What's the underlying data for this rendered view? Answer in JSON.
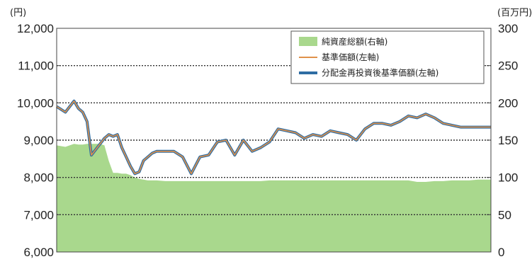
{
  "chart_data": {
    "type": "line",
    "left_unit": "(円)",
    "right_unit": "(百万円)",
    "y_left": {
      "lim": [
        6000,
        12000
      ],
      "ticks": [
        "6,000",
        "7,000",
        "8,000",
        "9,000",
        "10,000",
        "11,000",
        "12,000"
      ]
    },
    "y_right": {
      "lim": [
        0,
        300
      ],
      "ticks": [
        "0",
        "50",
        "100",
        "150",
        "200",
        "250",
        "300"
      ]
    },
    "grid": "dotted horizontal",
    "legend": {
      "placement": "top-right",
      "items": [
        "純資産総額(右軸)",
        "基準価額(左軸)",
        "分配金再投資後基準価額(左軸)"
      ]
    },
    "colors": {
      "area": "#a9d88d",
      "nav": "#e0914a",
      "reinvested": "#2f6da3"
    },
    "x": [
      0,
      2,
      4,
      5,
      6,
      7,
      8,
      9,
      10,
      11,
      12,
      13,
      14,
      15,
      16,
      17,
      18,
      19,
      20,
      21,
      22,
      23,
      25,
      27,
      29,
      31,
      33,
      35,
      37,
      39,
      41,
      43,
      45,
      47,
      49,
      51,
      53,
      55,
      57,
      59,
      61,
      63,
      65,
      67,
      69,
      71,
      73,
      75,
      77,
      79,
      81,
      83,
      85,
      87,
      89,
      91,
      93,
      95,
      97,
      99,
      100
    ],
    "series": [
      {
        "name": "純資産総額(右軸)",
        "axis": "right",
        "values": [
          143,
          141,
          145,
          144,
          144,
          145,
          145,
          145,
          145,
          143,
          122,
          106,
          106,
          105,
          105,
          103,
          100,
          98,
          97,
          96,
          96,
          96,
          95,
          95,
          95,
          95,
          95,
          95,
          95,
          95,
          95,
          95,
          95,
          95,
          96,
          96,
          96,
          96,
          96,
          96,
          96,
          96,
          96,
          96,
          96,
          96,
          96,
          96,
          96,
          96,
          96,
          94,
          94,
          95,
          95,
          96,
          96,
          96,
          97,
          97,
          97
        ]
      },
      {
        "name": "基準価額(左軸)",
        "axis": "left",
        "values": [
          9900,
          9750,
          10050,
          9850,
          9750,
          9500,
          8600,
          8750,
          8900,
          9050,
          9150,
          9100,
          9150,
          8800,
          8550,
          8300,
          8100,
          8150,
          8450,
          8550,
          8650,
          8700,
          8700,
          8700,
          8550,
          8100,
          8550,
          8600,
          8950,
          9000,
          8600,
          9000,
          8700,
          8800,
          8950,
          9300,
          9250,
          9200,
          9050,
          9150,
          9100,
          9250,
          9200,
          9150,
          9000,
          9300,
          9450,
          9450,
          9400,
          9500,
          9650,
          9600,
          9700,
          9600,
          9450,
          9400,
          9350,
          9350,
          9350,
          9350,
          9350
        ]
      },
      {
        "name": "分配金再投資後基準価額(左軸)",
        "axis": "left",
        "values": [
          9900,
          9750,
          10050,
          9850,
          9750,
          9500,
          8600,
          8750,
          8900,
          9050,
          9150,
          9100,
          9150,
          8800,
          8550,
          8300,
          8100,
          8150,
          8450,
          8550,
          8650,
          8700,
          8700,
          8700,
          8550,
          8100,
          8550,
          8600,
          8950,
          9000,
          8600,
          9000,
          8700,
          8800,
          8950,
          9300,
          9250,
          9200,
          9050,
          9150,
          9100,
          9250,
          9200,
          9150,
          9000,
          9300,
          9450,
          9450,
          9400,
          9500,
          9650,
          9600,
          9700,
          9600,
          9450,
          9400,
          9350,
          9350,
          9350,
          9350,
          9350
        ]
      }
    ]
  }
}
